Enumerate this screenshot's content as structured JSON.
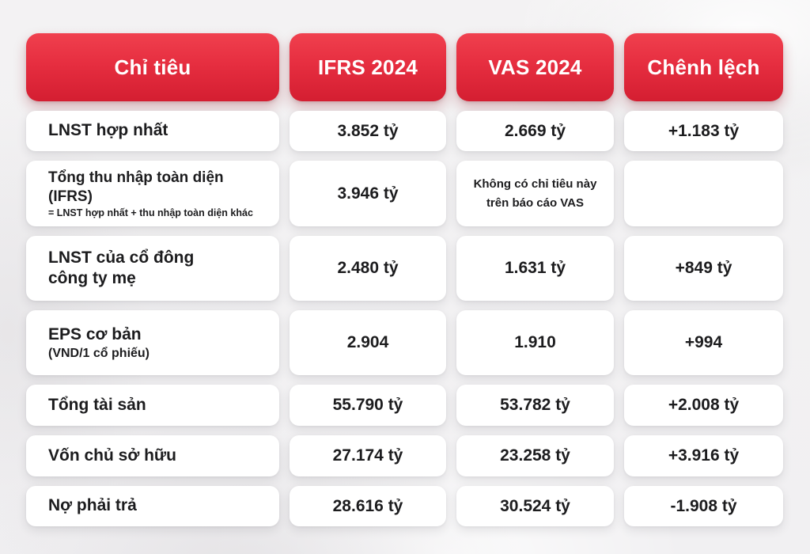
{
  "colors": {
    "header_red_top": "#f0404e",
    "header_red_bottom": "#d41e31",
    "cell_background": "#ffffff",
    "text": "#1c1c1e",
    "page_background": "#f2f1f2"
  },
  "chart_data": {
    "type": "table",
    "title": "",
    "columns": [
      "Chỉ tiêu",
      "IFRS 2024",
      "VAS 2024",
      "Chênh lệch"
    ],
    "rows": [
      {
        "label": "LNST hợp nhất",
        "sublabel": "",
        "ifrs": "3.852 tỷ",
        "vas": "2.669 tỷ",
        "diff": "+1.183 tỷ"
      },
      {
        "label": "Tổng thu nhập toàn diện (IFRS)",
        "sublabel": "= LNST hợp nhất + thu nhập toàn diện khác",
        "ifrs": "3.946 tỷ",
        "vas": "Không có chỉ tiêu này\ntrên báo cáo VAS",
        "diff": ""
      },
      {
        "label": "LNST của cổ đông\ncông ty mẹ",
        "sublabel": "",
        "ifrs": "2.480 tỷ",
        "vas": "1.631 tỷ",
        "diff": "+849 tỷ"
      },
      {
        "label": "EPS cơ bản",
        "sublabel": "(VND/1 cổ phiếu)",
        "ifrs": "2.904",
        "vas": "1.910",
        "diff": "+994"
      },
      {
        "label": "Tổng tài sản",
        "sublabel": "",
        "ifrs": "55.790 tỷ",
        "vas": "53.782 tỷ",
        "diff": "+2.008 tỷ"
      },
      {
        "label": "Vốn chủ sở hữu",
        "sublabel": "",
        "ifrs": "27.174 tỷ",
        "vas": "23.258 tỷ",
        "diff": "+3.916 tỷ"
      },
      {
        "label": "Nợ phải trả",
        "sublabel": "",
        "ifrs": "28.616 tỷ",
        "vas": "30.524 tỷ",
        "diff": "-1.908 tỷ"
      }
    ]
  }
}
